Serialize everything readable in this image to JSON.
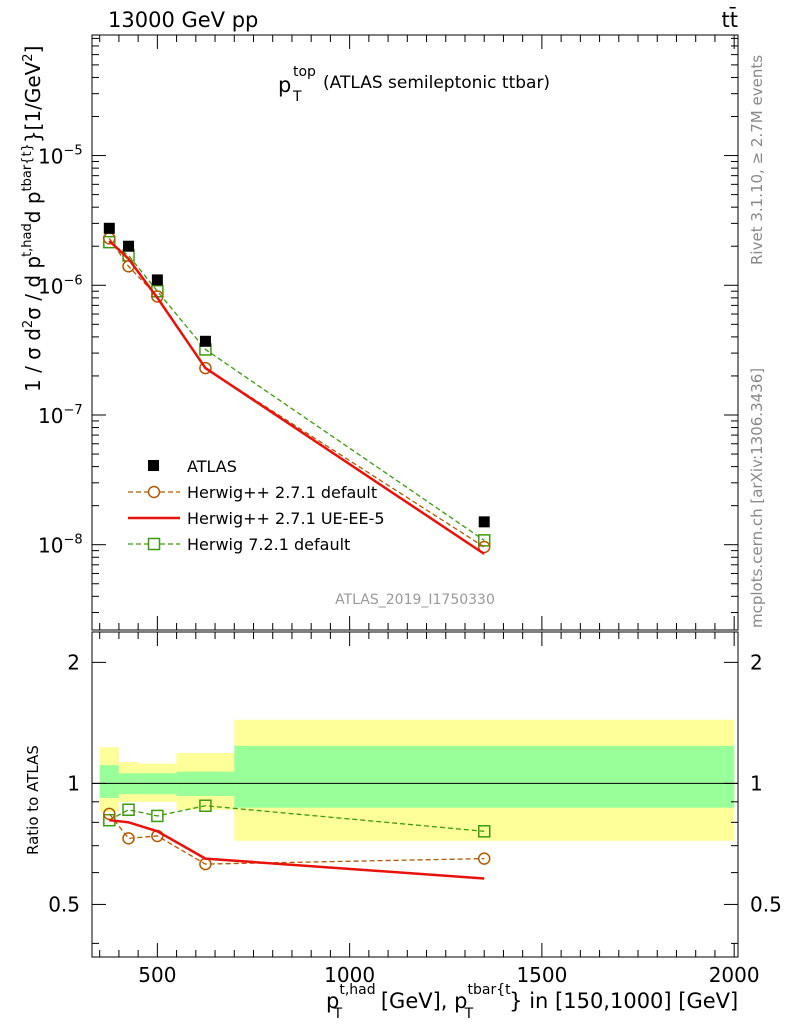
{
  "header": {
    "energy_label": "13000 GeV pp",
    "process_label": "tt̄"
  },
  "side_labels": {
    "rivet": "Rivet 3.1.10, ≥ 2.7M events",
    "mcplots": "mcplots.cern.ch [arXiv:1306.3436]"
  },
  "analysis_id": "ATLAS_2019_I1750330",
  "chart_data": [
    {
      "type": "scatter",
      "title_main": "p",
      "title_sup": "top",
      "title_sub": "T",
      "title_rest": "(ATLAS semileptonic ttbar)",
      "ylabel": "1 / σ d²σ / d p_T^{t,had} d p_T^{tbar{t}} [1/GeV²]",
      "ylabel_parts": {
        "a": "1 / σ d",
        "a_sup": "2",
        "b": "σ / d p",
        "b_sup": "t,had",
        "b_sub": "T",
        "c": "d p",
        "c_sup": "tbar{t}",
        "c_sub": "T",
        "d": "}[1/GeV",
        "d_sup": "2",
        "e": "]"
      },
      "yscale": "log",
      "ylim": [
        2.2e-09,
        8.5e-05
      ],
      "xlim": [
        330,
        2010
      ],
      "ytick_labels": [
        {
          "value": 1e-05,
          "mant": "10",
          "exp": "−5"
        },
        {
          "value": 1e-06,
          "mant": "10",
          "exp": "−6"
        },
        {
          "value": 1e-07,
          "mant": "10",
          "exp": "−7"
        },
        {
          "value": 1e-08,
          "mant": "10",
          "exp": "−8"
        }
      ],
      "legend_position": "bottom-left",
      "series": [
        {
          "name": "ATLAS",
          "style": "data",
          "color": "#000000",
          "x": [
            375,
            425,
            500,
            625,
            1350
          ],
          "y": [
            2.75e-06,
            2e-06,
            1.1e-06,
            3.7e-07,
            1.5e-08
          ]
        },
        {
          "name": "Herwig++ 2.7.1 default",
          "style": "dashed-circle",
          "color": "#b35900",
          "x": [
            375,
            425,
            500,
            625,
            1350
          ],
          "y": [
            2.3e-06,
            1.4e-06,
            8.2e-07,
            2.3e-07,
            9.6e-09
          ]
        },
        {
          "name": "Herwig++ 2.7.1 UE-EE-5",
          "style": "solid",
          "color": "#e8120b",
          "x": [
            375,
            425,
            500,
            625,
            1350
          ],
          "y": [
            2.2e-06,
            1.6e-06,
            8e-07,
            2.3e-07,
            8.5e-09
          ]
        },
        {
          "name": "Herwig 7.2.1 default",
          "style": "dashed-square",
          "color": "#3c9b0c",
          "x": [
            375,
            425,
            500,
            625,
            1350
          ],
          "y": [
            2.15e-06,
            1.7e-06,
            9e-07,
            3.2e-07,
            1.08e-08
          ]
        }
      ]
    },
    {
      "type": "scatter",
      "ylabel": "Ratio to ATLAS",
      "xlabel_parts": {
        "a": "p",
        "a_sup": "t,had",
        "a_sub": "T",
        "b": " [GeV], p",
        "b_sup": "tbar{t",
        "b_sub": "T",
        "c": "} in [150,1000] [GeV]"
      },
      "ylim": [
        0.37,
        2.38
      ],
      "xlim": [
        330,
        2010
      ],
      "yticks": [
        0.5,
        1,
        2
      ],
      "ytick_labels": [
        "0.5",
        "1",
        "2"
      ],
      "xticks": [
        500,
        1000,
        1500,
        2000
      ],
      "xtick_labels": [
        "500",
        "1000",
        "1500",
        "2000"
      ],
      "bands": [
        {
          "x0": 350,
          "x1": 400,
          "inner": [
            0.92,
            1.11
          ],
          "outer": [
            0.85,
            1.23
          ]
        },
        {
          "x0": 400,
          "x1": 450,
          "inner": [
            0.94,
            1.06
          ],
          "outer": [
            0.9,
            1.13
          ]
        },
        {
          "x0": 450,
          "x1": 550,
          "inner": [
            0.94,
            1.06
          ],
          "outer": [
            0.9,
            1.12
          ]
        },
        {
          "x0": 550,
          "x1": 700,
          "inner": [
            0.93,
            1.07
          ],
          "outer": [
            0.86,
            1.19
          ]
        },
        {
          "x0": 700,
          "x1": 2000,
          "inner": [
            0.87,
            1.24
          ],
          "outer": [
            0.72,
            1.44
          ]
        }
      ],
      "band_colors": {
        "inner": "#99ff99",
        "outer": "#ffff99"
      },
      "series": [
        {
          "name": "Herwig++ 2.7.1 default",
          "style": "dashed-circle",
          "color": "#b35900",
          "x": [
            375,
            425,
            500,
            625,
            1350
          ],
          "y": [
            0.84,
            0.73,
            0.74,
            0.63,
            0.65
          ]
        },
        {
          "name": "Herwig++ 2.7.1 UE-EE-5",
          "style": "solid",
          "color": "#e8120b",
          "x": [
            375,
            425,
            500,
            625,
            1350
          ],
          "y": [
            0.81,
            0.8,
            0.76,
            0.65,
            0.58
          ]
        },
        {
          "name": "Herwig 7.2.1 default",
          "style": "dashed-square",
          "color": "#3c9b0c",
          "x": [
            375,
            425,
            500,
            625,
            1350
          ],
          "y": [
            0.81,
            0.86,
            0.83,
            0.88,
            0.76
          ]
        }
      ]
    }
  ]
}
